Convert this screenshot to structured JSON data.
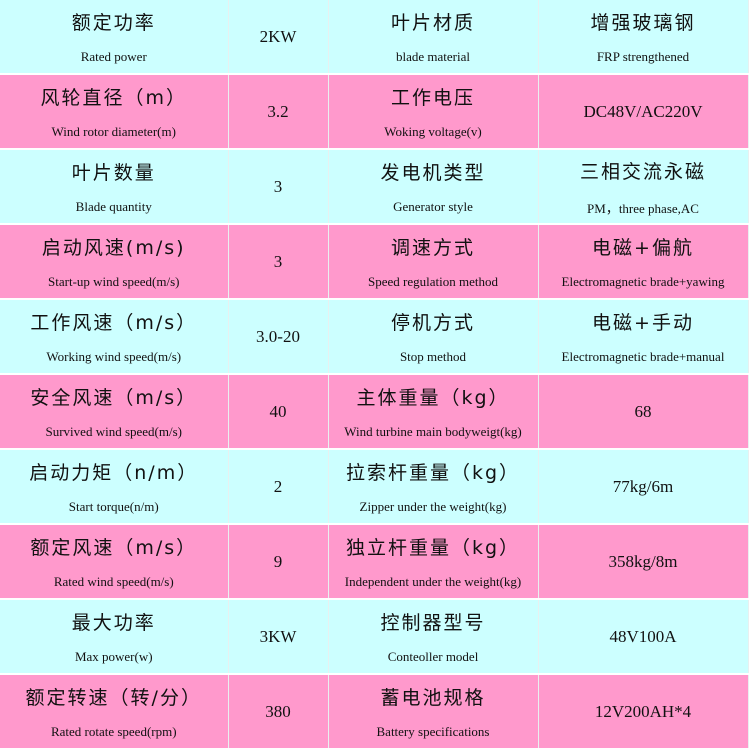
{
  "colors": {
    "row_a": "#ccffff",
    "row_b": "#ff99cc"
  },
  "rows": [
    {
      "p1_zh": "额定功率",
      "p1_en": "Rated power",
      "v1": "2KW",
      "p2_zh": "叶片材质",
      "p2_en": "blade material",
      "v2_zh": "增强玻璃钢",
      "v2_en": "FRP strengthened"
    },
    {
      "p1_zh": "风轮直径（m）",
      "p1_en": "Wind rotor diameter(m)",
      "v1": "3.2",
      "p2_zh": "工作电压",
      "p2_en": "Woking voltage(v)",
      "v2_zh": "",
      "v2_en": "DC48V/AC220V"
    },
    {
      "p1_zh": "叶片数量",
      "p1_en": "Blade quantity",
      "v1": "3",
      "p2_zh": "发电机类型",
      "p2_en": "Generator style",
      "v2_zh": "三相交流永磁",
      "v2_en": "PM，three phase,AC"
    },
    {
      "p1_zh": "启动风速(m/s)",
      "p1_en": "Start-up wind speed(m/s)",
      "v1": "3",
      "p2_zh": "调速方式",
      "p2_en": "Speed regulation method",
      "v2_zh": "电磁+偏航",
      "v2_en": "Electromagnetic brade+yawing"
    },
    {
      "p1_zh": "工作风速（m/s）",
      "p1_en": "Working wind speed(m/s)",
      "v1": "3.0-20",
      "p2_zh": "停机方式",
      "p2_en": "Stop method",
      "v2_zh": "电磁+手动",
      "v2_en": "Electromagnetic brade+manual"
    },
    {
      "p1_zh": "安全风速（m/s）",
      "p1_en": "Survived wind speed(m/s)",
      "v1": "40",
      "p2_zh": "主体重量（kg）",
      "p2_en": "Wind turbine main bodyweigt(kg)",
      "v2_zh": "",
      "v2_en": "68"
    },
    {
      "p1_zh": "启动力矩（n/m）",
      "p1_en": "Start torque(n/m)",
      "v1": "2",
      "p2_zh": "拉索杆重量（kg）",
      "p2_en": "Zipper under the weight(kg)",
      "v2_zh": "",
      "v2_en": "77kg/6m"
    },
    {
      "p1_zh": "额定风速（m/s）",
      "p1_en": "Rated wind speed(m/s)",
      "v1": "9",
      "p2_zh": "独立杆重量（kg）",
      "p2_en": "Independent under the weight(kg)",
      "v2_zh": "",
      "v2_en": "358kg/8m"
    },
    {
      "p1_zh": "最大功率",
      "p1_en": "Max power(w)",
      "v1": "3KW",
      "p2_zh": "控制器型号",
      "p2_en": "Conteoller model",
      "v2_zh": "",
      "v2_en": "48V100A"
    },
    {
      "p1_zh": "额定转速（转/分）",
      "p1_en": "Rated rotate speed(rpm)",
      "v1": "380",
      "p2_zh": "蓄电池规格",
      "p2_en": "Battery specifications",
      "v2_zh": "",
      "v2_en": "12V200AH*4"
    }
  ]
}
